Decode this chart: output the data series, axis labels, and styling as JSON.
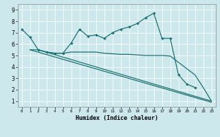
{
  "xlabel": "Humidex (Indice chaleur)",
  "bg_color": "#cce8ed",
  "line_color": "#1a7070",
  "grid_color": "#ffffff",
  "xlim": [
    -0.5,
    23.5
  ],
  "ylim": [
    0.5,
    9.5
  ],
  "xticks": [
    0,
    1,
    2,
    3,
    4,
    5,
    6,
    7,
    8,
    9,
    10,
    11,
    12,
    13,
    14,
    15,
    16,
    17,
    18,
    19,
    20,
    21,
    22,
    23
  ],
  "yticks": [
    1,
    2,
    3,
    4,
    5,
    6,
    7,
    8,
    9
  ],
  "line1_x": [
    0,
    1,
    2,
    3,
    4,
    5,
    6,
    7,
    8,
    9,
    10,
    11,
    12,
    13,
    14,
    15,
    16,
    17,
    18,
    19,
    20,
    21
  ],
  "line1_y": [
    7.3,
    6.6,
    5.5,
    5.3,
    5.2,
    5.2,
    6.1,
    7.3,
    6.7,
    6.8,
    6.5,
    7.0,
    7.3,
    7.5,
    7.8,
    8.3,
    8.7,
    6.5,
    6.5,
    3.3,
    2.5,
    2.2
  ],
  "line2_x": [
    1,
    2,
    3,
    4,
    5,
    6,
    7,
    8,
    9,
    10,
    11,
    12,
    13,
    14,
    15,
    16,
    17,
    18,
    21,
    22,
    23
  ],
  "line2_y": [
    5.5,
    5.5,
    5.3,
    5.2,
    5.2,
    5.3,
    5.3,
    5.3,
    5.3,
    5.2,
    5.15,
    5.1,
    5.1,
    5.05,
    5.0,
    5.0,
    5.0,
    4.95,
    3.3,
    2.2,
    1.0
  ],
  "line3_x": [
    2,
    23
  ],
  "line3_y": [
    5.5,
    1.0
  ],
  "line4_x": [
    1,
    23
  ],
  "line4_y": [
    5.5,
    0.9
  ]
}
